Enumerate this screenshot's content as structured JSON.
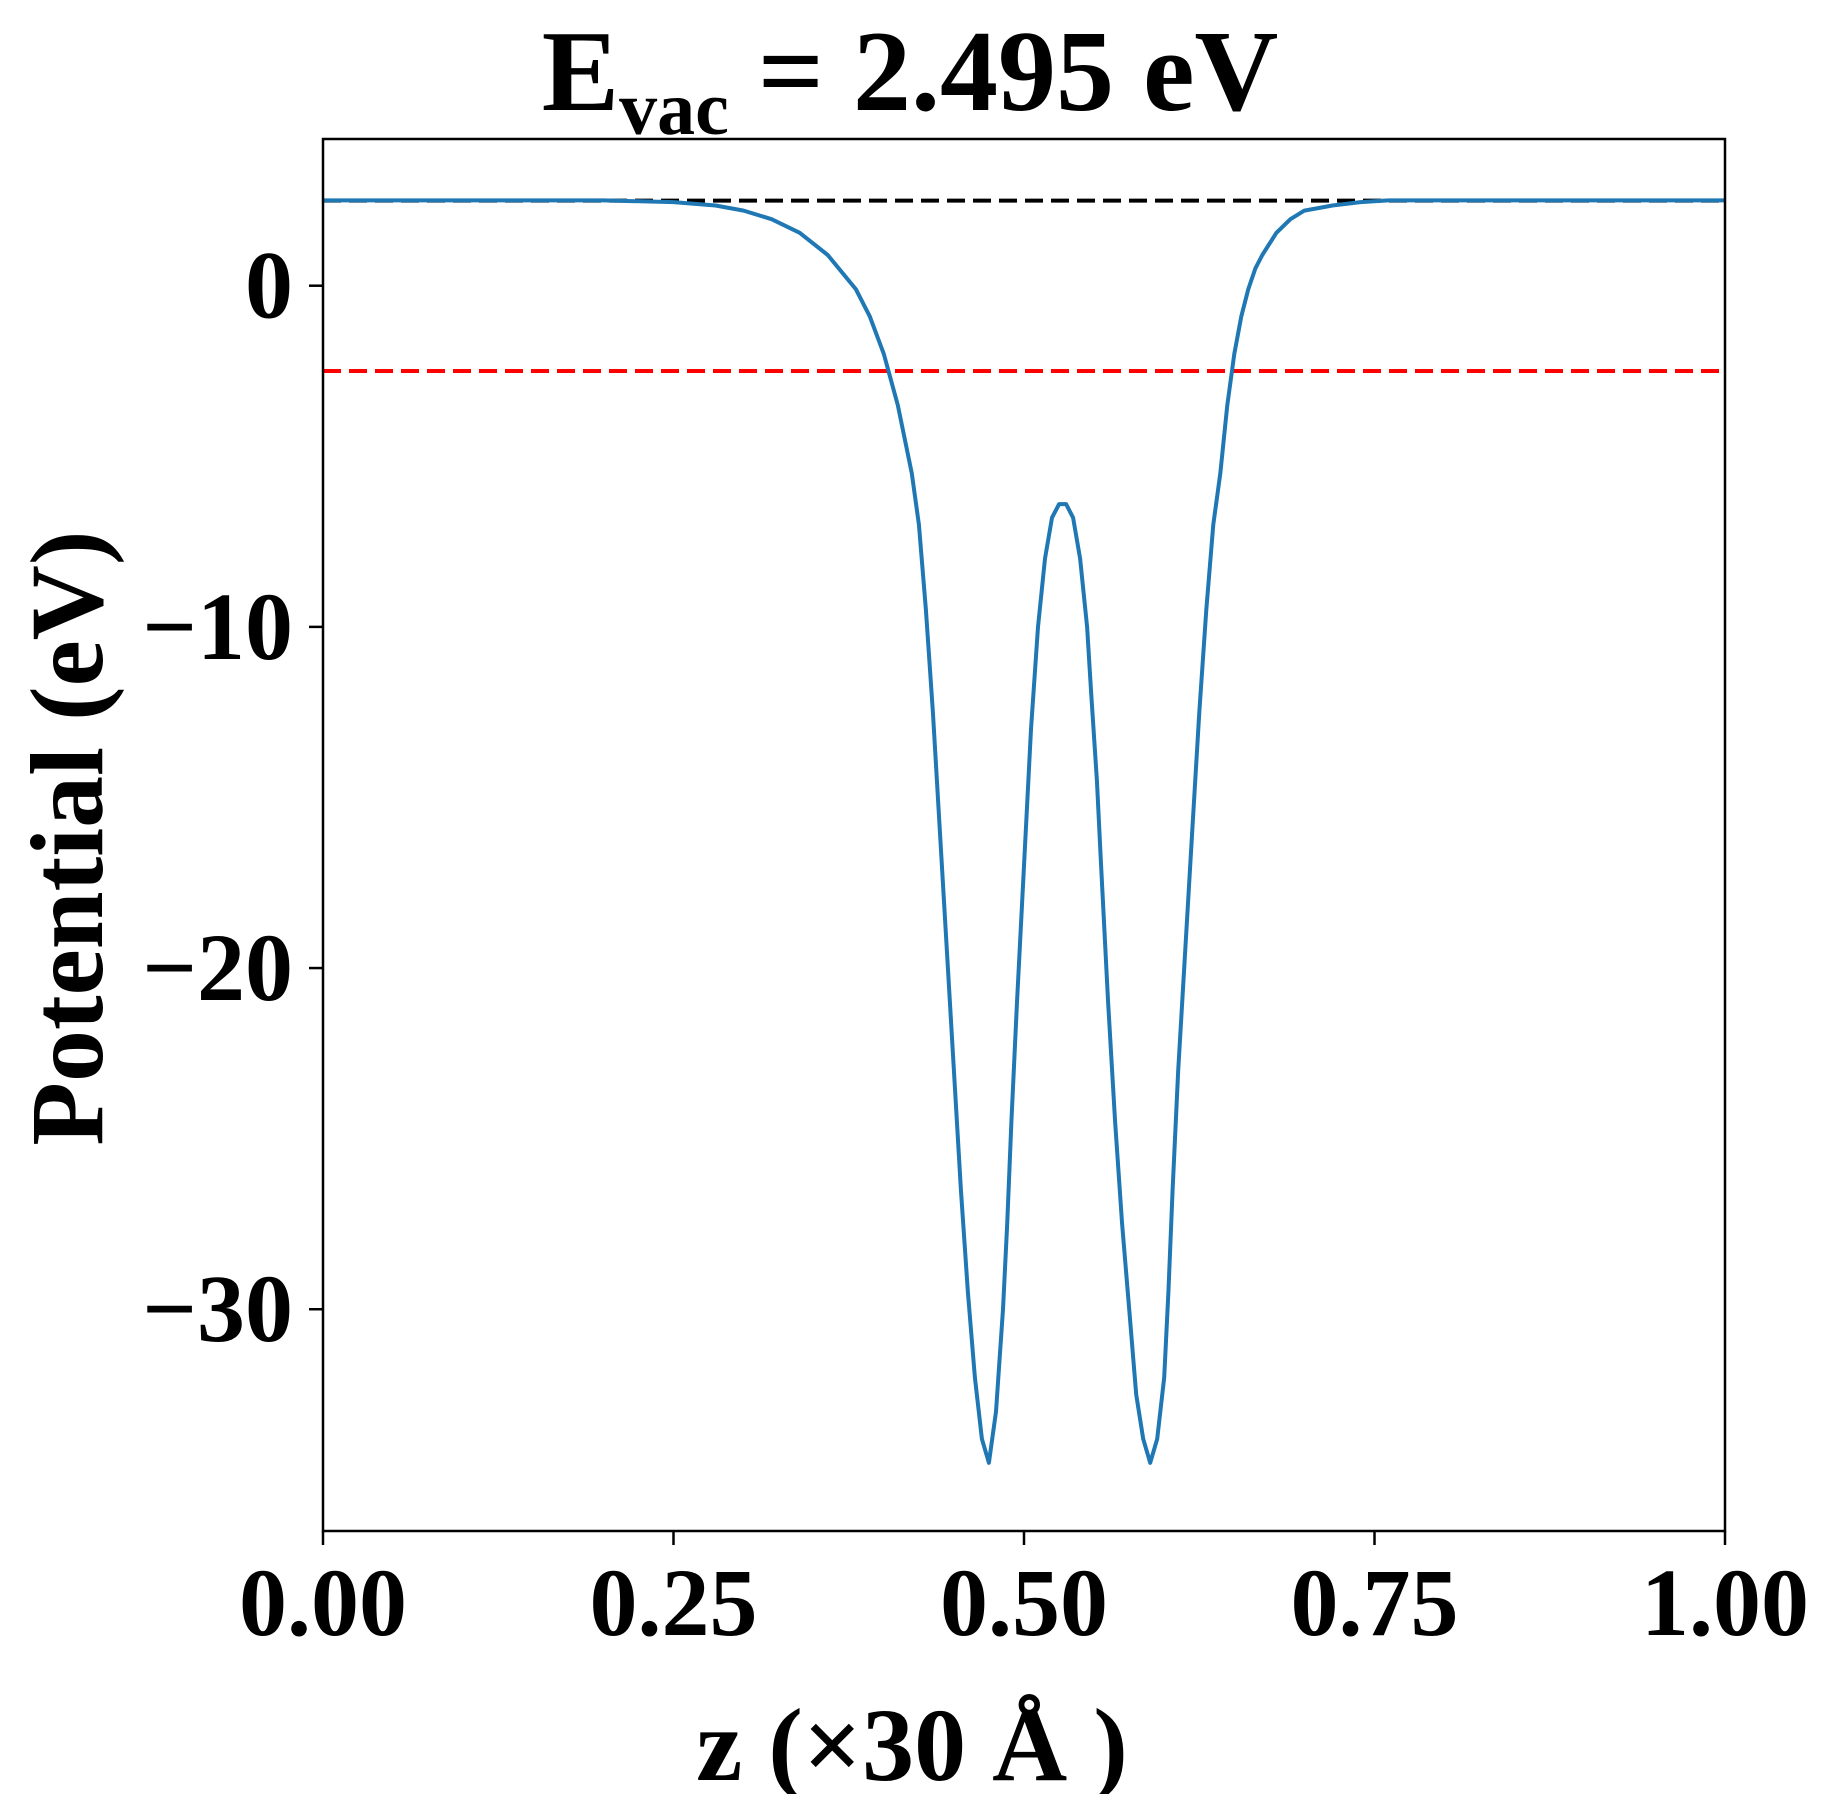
{
  "chart_data": {
    "type": "line",
    "title": {
      "main": "E",
      "subscript": "vac",
      "rest": " = 2.495 eV"
    },
    "xlabel": "z (×30 Å )",
    "ylabel": "Potential (eV)",
    "xlim": [
      0.0,
      1.0
    ],
    "ylim": [
      -36.5,
      4.3
    ],
    "xticks": [
      0.0,
      0.25,
      0.5,
      0.75,
      1.0
    ],
    "xtick_labels": [
      "0.00",
      "0.25",
      "0.50",
      "0.75",
      "1.00"
    ],
    "yticks": [
      0,
      -10,
      -20,
      -30
    ],
    "ytick_labels": [
      "0",
      "−10",
      "−20",
      "−30"
    ],
    "grid": false,
    "reference_lines": [
      {
        "kind": "vacuum-level",
        "y": 2.495,
        "color": "#000000",
        "style": "dashed"
      },
      {
        "kind": "fermi-level",
        "y": -2.5,
        "color": "#ff0000",
        "style": "dashed"
      }
    ],
    "series": [
      {
        "color": "#1f77b4",
        "x": [
          0.0,
          0.05,
          0.1,
          0.15,
          0.2,
          0.25,
          0.28,
          0.3,
          0.32,
          0.34,
          0.36,
          0.38,
          0.39,
          0.4,
          0.41,
          0.42,
          0.425,
          0.43,
          0.435,
          0.44,
          0.445,
          0.45,
          0.455,
          0.46,
          0.465,
          0.47,
          0.475,
          0.48,
          0.485,
          0.488,
          0.491,
          0.495,
          0.5,
          0.505,
          0.51,
          0.515,
          0.52,
          0.525,
          0.53,
          0.535,
          0.54,
          0.545,
          0.548,
          0.552,
          0.555,
          0.56,
          0.565,
          0.57,
          0.575,
          0.58,
          0.585,
          0.59,
          0.595,
          0.6,
          0.603,
          0.606,
          0.61,
          0.615,
          0.62,
          0.625,
          0.63,
          0.635,
          0.64,
          0.645,
          0.65,
          0.655,
          0.66,
          0.665,
          0.67,
          0.68,
          0.69,
          0.7,
          0.72,
          0.74,
          0.76,
          0.78,
          0.8,
          0.85,
          0.9,
          0.95,
          1.0
        ],
        "y": [
          2.5,
          2.5,
          2.5,
          2.5,
          2.5,
          2.45,
          2.35,
          2.2,
          1.95,
          1.55,
          0.9,
          -0.1,
          -0.9,
          -2.0,
          -3.5,
          -5.5,
          -7.0,
          -9.5,
          -12.5,
          -16.0,
          -19.5,
          -23.0,
          -26.5,
          -29.5,
          -32.0,
          -33.8,
          -34.5,
          -33.0,
          -30.0,
          -27.5,
          -24.5,
          -21.0,
          -17.0,
          -13.0,
          -10.0,
          -8.0,
          -6.8,
          -6.4,
          -6.4,
          -6.8,
          -8.0,
          -10.0,
          -12.0,
          -14.5,
          -17.0,
          -21.0,
          -24.5,
          -27.5,
          -30.0,
          -32.5,
          -33.8,
          -34.5,
          -33.8,
          -32.0,
          -29.5,
          -26.5,
          -23.0,
          -19.5,
          -16.0,
          -12.5,
          -9.5,
          -7.0,
          -5.5,
          -3.5,
          -2.0,
          -0.9,
          -0.1,
          0.5,
          0.9,
          1.55,
          1.95,
          2.2,
          2.35,
          2.45,
          2.5,
          2.5,
          2.5,
          2.5,
          2.5,
          2.5,
          2.5
        ]
      }
    ]
  }
}
